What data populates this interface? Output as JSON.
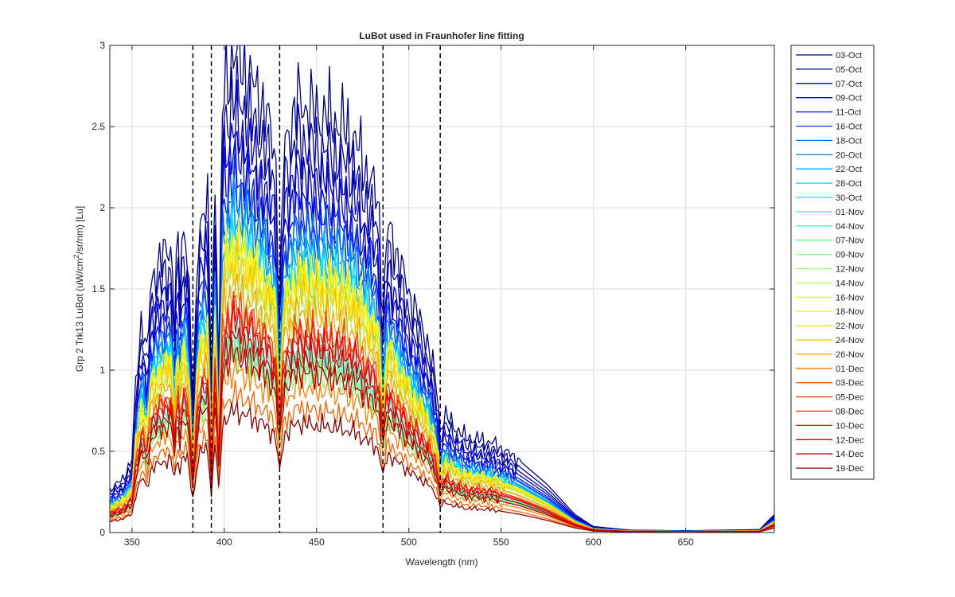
{
  "chart_data": {
    "type": "line",
    "title": "LuBot used in Fraunhofer line fitting",
    "xlabel": "Wavelength (nm)",
    "ylabel_parts": [
      "Grp 2 Trk13 LuBot (uW/cm",
      "2",
      "/sr/nm) [Lu]"
    ],
    "xlim": [
      338,
      698
    ],
    "ylim": [
      0,
      3
    ],
    "xticks": [
      350,
      400,
      450,
      500,
      550,
      600,
      650
    ],
    "yticks": [
      0,
      0.5,
      1,
      1.5,
      2,
      2.5,
      3
    ],
    "ytick_labels": [
      "0",
      "0.5",
      "1",
      "1.5",
      "2",
      "2.5",
      "3"
    ],
    "grid": true,
    "legend_position": "outside-right",
    "fraunhofer_lines": [
      383,
      393,
      430,
      486,
      517
    ],
    "series": [
      {
        "name": "03-Oct",
        "color": "#00008f",
        "peak": 2.95
      },
      {
        "name": "05-Oct",
        "color": "#0000a8",
        "peak": 2.7
      },
      {
        "name": "07-Oct",
        "color": "#0000c2",
        "peak": 2.5
      },
      {
        "name": "09-Oct",
        "color": "#0000db",
        "peak": 2.35
      },
      {
        "name": "11-Oct",
        "color": "#0010ff",
        "peak": 2.2
      },
      {
        "name": "16-Oct",
        "color": "#0040ff",
        "peak": 2.1
      },
      {
        "name": "18-Oct",
        "color": "#0070ff",
        "peak": 2.05
      },
      {
        "name": "20-Oct",
        "color": "#0090ff",
        "peak": 1.95
      },
      {
        "name": "22-Oct",
        "color": "#00b0ff",
        "peak": 1.9
      },
      {
        "name": "28-Oct",
        "color": "#00d0ff",
        "peak": 1.85
      },
      {
        "name": "30-Oct",
        "color": "#00f0ff",
        "peak": 1.8
      },
      {
        "name": "01-Nov",
        "color": "#20ffe0",
        "peak": 1.25
      },
      {
        "name": "04-Nov",
        "color": "#40ffc0",
        "peak": 1.2
      },
      {
        "name": "07-Nov",
        "color": "#60ffa0",
        "peak": 1.15
      },
      {
        "name": "09-Nov",
        "color": "#80ff80",
        "peak": 1.1
      },
      {
        "name": "12-Nov",
        "color": "#a0ff60",
        "peak": 1.55
      },
      {
        "name": "14-Nov",
        "color": "#c0ff40",
        "peak": 1.7
      },
      {
        "name": "16-Nov",
        "color": "#e0ff20",
        "peak": 1.75
      },
      {
        "name": "18-Nov",
        "color": "#ffff00",
        "peak": 1.8
      },
      {
        "name": "22-Nov",
        "color": "#ffe000",
        "peak": 1.75
      },
      {
        "name": "24-Nov",
        "color": "#ffc000",
        "peak": 1.65
      },
      {
        "name": "26-Nov",
        "color": "#ffa000",
        "peak": 1.5
      },
      {
        "name": "01-Dec",
        "color": "#ff8000",
        "peak": 1.0
      },
      {
        "name": "03-Dec",
        "color": "#ff6000",
        "peak": 0.85
      },
      {
        "name": "05-Dec",
        "color": "#ff4000",
        "peak": 1.4
      },
      {
        "name": "08-Dec",
        "color": "#ff2000",
        "peak": 1.35
      },
      {
        "name": "10-Dec",
        "color": "#f00000",
        "peak": 1.3
      },
      {
        "name": "12-Dec",
        "color": "#d20000",
        "peak": 1.2
      },
      {
        "name": "14-Dec",
        "color": "#b40000",
        "peak": 1.1
      },
      {
        "name": "19-Dec",
        "color": "#900000",
        "peak": 0.75
      }
    ]
  }
}
